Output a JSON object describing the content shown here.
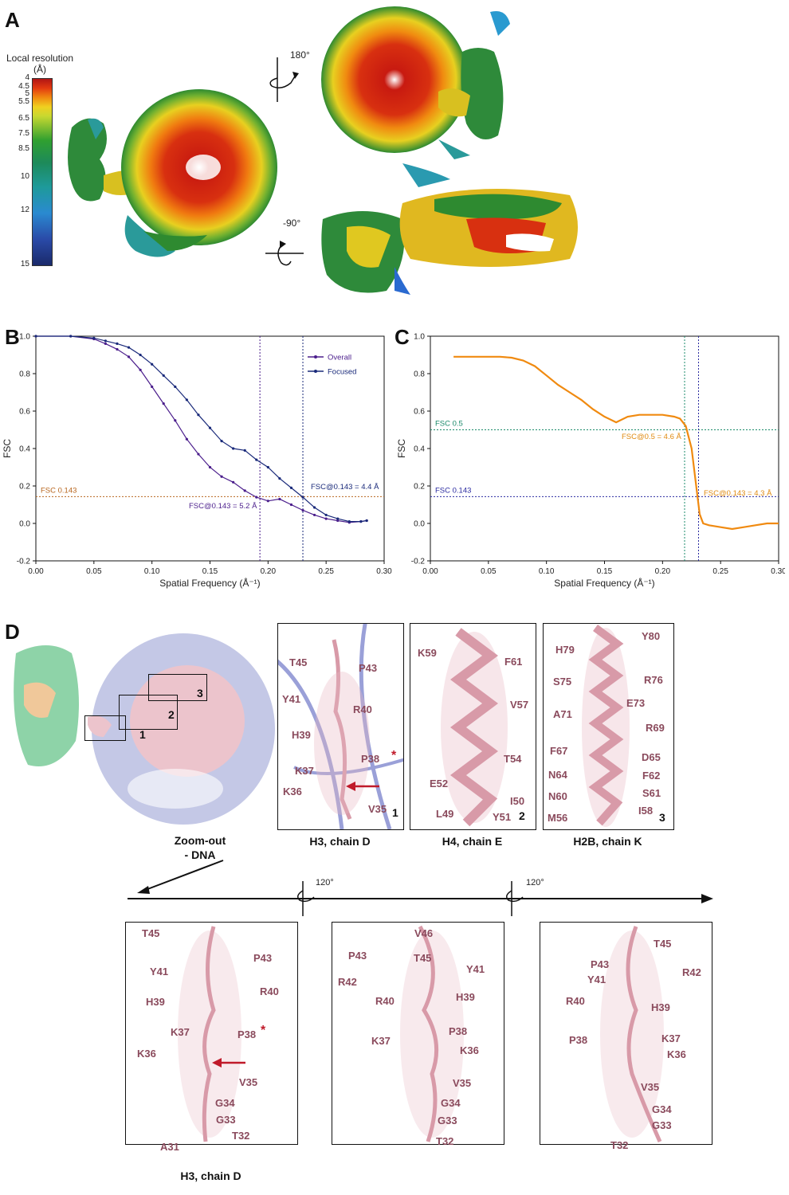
{
  "panels": {
    "a": "A",
    "b": "B",
    "c": "C",
    "d": "D"
  },
  "colorbar": {
    "title": "Local resolution",
    "unit": "(Å)",
    "ticks": [
      "4",
      "4.5",
      "5",
      "5.5",
      "6.5",
      "7.5",
      "8.5",
      "10",
      "12",
      "15"
    ]
  },
  "rotations": {
    "r180": "180°",
    "rm90": "-90°",
    "r120a": "120°",
    "r120b": "120°"
  },
  "chart_data": [
    {
      "type": "line",
      "xlabel": "Spatial Frequency (Å⁻¹)",
      "ylabel": "FSC",
      "xlim": [
        0,
        0.3
      ],
      "ylim": [
        -0.2,
        1.0
      ],
      "xticks": [
        "0.00",
        "0.05",
        "0.10",
        "0.15",
        "0.20",
        "0.25",
        "0.30"
      ],
      "yticks": [
        "-0.2",
        "0.0",
        "0.2",
        "0.4",
        "0.6",
        "0.8",
        "1.0"
      ],
      "legend_position": "top-right",
      "series": [
        {
          "name": "Overall",
          "color": "#4b1e8c",
          "x": [
            0,
            0.03,
            0.05,
            0.06,
            0.07,
            0.08,
            0.09,
            0.1,
            0.11,
            0.12,
            0.13,
            0.14,
            0.15,
            0.16,
            0.17,
            0.18,
            0.19,
            0.2,
            0.21,
            0.22,
            0.23,
            0.24,
            0.25,
            0.26,
            0.27,
            0.28,
            0.285
          ],
          "y": [
            1.0,
            1.0,
            0.985,
            0.96,
            0.93,
            0.89,
            0.82,
            0.73,
            0.64,
            0.55,
            0.45,
            0.37,
            0.3,
            0.25,
            0.22,
            0.175,
            0.14,
            0.12,
            0.13,
            0.1,
            0.07,
            0.045,
            0.025,
            0.015,
            0.005,
            0.01,
            0.015
          ]
        },
        {
          "name": "Focused",
          "color": "#1a2a7a",
          "x": [
            0,
            0.03,
            0.05,
            0.06,
            0.07,
            0.08,
            0.09,
            0.1,
            0.11,
            0.12,
            0.13,
            0.14,
            0.15,
            0.16,
            0.17,
            0.18,
            0.19,
            0.2,
            0.21,
            0.22,
            0.23,
            0.24,
            0.25,
            0.26,
            0.27,
            0.28,
            0.285
          ],
          "y": [
            1.0,
            1.0,
            0.99,
            0.975,
            0.96,
            0.94,
            0.9,
            0.85,
            0.79,
            0.73,
            0.66,
            0.58,
            0.51,
            0.44,
            0.4,
            0.39,
            0.34,
            0.3,
            0.24,
            0.19,
            0.14,
            0.085,
            0.045,
            0.025,
            0.01,
            0.01,
            0.015
          ]
        }
      ],
      "threshold": {
        "label": "FSC 0.143",
        "value": 0.143,
        "color": "#b8661e"
      },
      "cutoffs": [
        {
          "x": 0.193,
          "color": "#4b1e8c"
        },
        {
          "x": 0.23,
          "color": "#1a2a7a"
        }
      ],
      "annotations": [
        {
          "text": "FSC@0.143 =  5.2 Å",
          "color": "#4b1e8c"
        },
        {
          "text": "FSC@0.143 =  4.4 Å",
          "color": "#1a2a7a"
        }
      ]
    },
    {
      "type": "line",
      "xlabel": "Spatial Frequency (Å⁻¹)",
      "ylabel": "FSC",
      "xlim": [
        0,
        0.3
      ],
      "ylim": [
        -0.2,
        1.0
      ],
      "xticks": [
        "0.00",
        "0.05",
        "0.10",
        "0.15",
        "0.20",
        "0.25",
        "0.30"
      ],
      "yticks": [
        "-0.2",
        "0.0",
        "0.2",
        "0.4",
        "0.6",
        "0.8",
        "1.0"
      ],
      "series": [
        {
          "color": "#f08a10",
          "x": [
            0.02,
            0.04,
            0.06,
            0.07,
            0.08,
            0.09,
            0.1,
            0.11,
            0.12,
            0.13,
            0.14,
            0.15,
            0.16,
            0.17,
            0.18,
            0.19,
            0.2,
            0.21,
            0.215,
            0.22,
            0.225,
            0.23,
            0.232,
            0.235,
            0.24,
            0.25,
            0.26,
            0.27,
            0.28,
            0.29,
            0.3
          ],
          "y": [
            0.89,
            0.89,
            0.89,
            0.885,
            0.87,
            0.84,
            0.79,
            0.74,
            0.7,
            0.66,
            0.61,
            0.57,
            0.54,
            0.57,
            0.58,
            0.58,
            0.58,
            0.57,
            0.56,
            0.52,
            0.4,
            0.15,
            0.05,
            0.0,
            -0.01,
            -0.02,
            -0.03,
            -0.02,
            -0.01,
            0.0,
            0.0
          ]
        }
      ],
      "thresholds": [
        {
          "label": "FSC 0.5",
          "value": 0.5,
          "color": "#1a8a6a"
        },
        {
          "label": "FSC 0.143",
          "value": 0.143,
          "color": "#2a2aa0"
        }
      ],
      "cutoffs": [
        {
          "x": 0.219,
          "color": "#1a8a6a"
        },
        {
          "x": 0.231,
          "color": "#2a2aa0"
        }
      ],
      "annotations": [
        {
          "text": "FSC@0.5 =  4.6 Å",
          "color": "#e08a10"
        },
        {
          "text": "FSC@0.143 =  4.3 Å",
          "color": "#e08a10"
        }
      ]
    }
  ],
  "panelD": {
    "map_boxes": [
      "1",
      "2",
      "3"
    ],
    "zoom_label": "Zoom-out\n- DNA",
    "box1": {
      "caption": "H3, chain D",
      "index": "1",
      "residues": [
        "T45",
        "P43",
        "Y41",
        "R40",
        "H39",
        "P38",
        "K37",
        "K36",
        "V35"
      ]
    },
    "box2": {
      "caption": "H4, chain E",
      "index": "2",
      "residues": [
        "K59",
        "F61",
        "V57",
        "T54",
        "E52",
        "I50",
        "L49",
        "Y51"
      ]
    },
    "box3": {
      "caption": "H2B, chain K",
      "index": "3",
      "residues": [
        "H79",
        "Y80",
        "S75",
        "R76",
        "E73",
        "A71",
        "R69",
        "F67",
        "D65",
        "N64",
        "F62",
        "N60",
        "S61",
        "M56",
        "I58"
      ]
    },
    "bottom_caption": "H3, chain D",
    "view1": [
      "T45",
      "P43",
      "Y41",
      "R40",
      "H39",
      "P38",
      "K37",
      "K36",
      "V35",
      "G34",
      "G33",
      "T32",
      "A31"
    ],
    "view2": [
      "V46",
      "P43",
      "T45",
      "R42",
      "Y41",
      "R40",
      "H39",
      "P38",
      "K37",
      "K36",
      "V35",
      "G34",
      "G33",
      "T32"
    ],
    "view3": [
      "T45",
      "P43",
      "Y41",
      "R42",
      "R40",
      "H39",
      "P38",
      "K37",
      "K36",
      "V35",
      "G34",
      "G33",
      "T32"
    ],
    "star": "*"
  }
}
